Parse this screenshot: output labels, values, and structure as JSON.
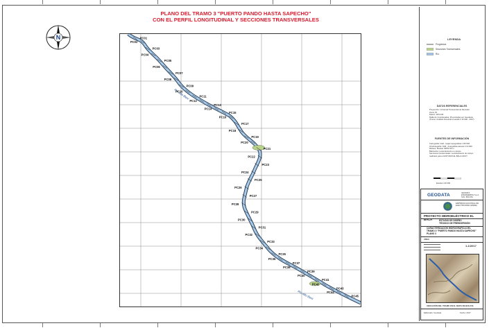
{
  "map": {
    "title_line1": "PLANO DEL TRAMO 3 \"PUERTO PANDO HASTA SAPECHO\"",
    "title_line2": "CON EL PERFIL LONGITUDINAL Y SECCIONES TRANSVERSALES",
    "north_label": "N",
    "river_label_upper": "Río Alto Beni",
    "river_label_lower": "Río Alto Beni",
    "section_labels": [
      "PC01",
      "PC02",
      "PC03",
      "PC04",
      "PC05",
      "PC06",
      "PC07",
      "PC08",
      "PC09",
      "PC10",
      "PC11",
      "PC12",
      "PC13",
      "PC14",
      "PC15",
      "PC16",
      "PC17",
      "PC18",
      "PC19",
      "PC20",
      "PC21",
      "PC22",
      "PC23",
      "PC24",
      "PC25",
      "PC26",
      "PC27",
      "PC28",
      "PC29",
      "PC30",
      "PC31",
      "PC32",
      "PC33",
      "PC34",
      "PC35",
      "PC36",
      "PC37",
      "PC38",
      "PC39",
      "PC40",
      "PC41",
      "PC42",
      "PC43",
      "PC44",
      "PC45"
    ]
  },
  "legend": {
    "title": "LEYENDA",
    "items": [
      {
        "label": "Progresiva",
        "color": "#333333"
      },
      {
        "label": "Secciones Transversales",
        "color": "#b9d38a"
      },
      {
        "label": "Río",
        "color": "#9ec3e6"
      }
    ]
  },
  "datos_referenciales": {
    "title": "DATOS REFERENCIALES",
    "lines": [
      "Proyección: Universal Transversal de Mercator",
      "Zona: 19",
      "Datum: WGS 84",
      "Malla de Coordenadas: Proyectadas por Geodesia",
      "(Tramo: Análisis bimestral a escala 1:10 000 - 2017)"
    ]
  },
  "fuentes": {
    "title": "FUENTES DE INFORMACIÓN",
    "lines": [
      "Cartografía: IGM - Hojas topográficas 1:50 000",
      "Ortofotografía: IGM - Fotografías aéreas 1:10 000",
      "Relieve: Modelo SRTM 30 m",
      "Batimetría: Levantamiento en campo",
      "Secciones transversales: Levantamiento de campo",
      "realizado para el ESTUDIO EL BALA (2017)"
    ]
  },
  "scale_text": "Escala 1:40 000",
  "title_block": {
    "company": "GEODATA",
    "company_sub": [
      "GEODATA",
      "ENGINEERING S.p.A.",
      "SUC. BOLIVIA"
    ],
    "client_lines": [
      "EMPRESA NACIONAL DE",
      "ELECTRICIDAD (ENDE)"
    ],
    "project": "PROYECTO HIDROELÉCTRICO EL BALA",
    "study_lines": [
      "ESTUDIO DE DISEÑO",
      "TÉCNICO DE PREINVERSIÓN"
    ],
    "plan_lines": [
      "CARACTERIZACIÓN HIDROGRÁFICA DEL",
      "TRAMO 3 \"PUERTO PANDO HASTA SAPECHO\"",
      "PLANO 3"
    ],
    "area_label": "ÁREA",
    "sheet_code": "1-1/2017",
    "inset_caption": "UBICACIÓN DEL TRAMO EN EL MAPA DE BOLIVIA",
    "footer_left": "Elaborado: Geodata",
    "footer_right": "Fecha: 2017"
  }
}
